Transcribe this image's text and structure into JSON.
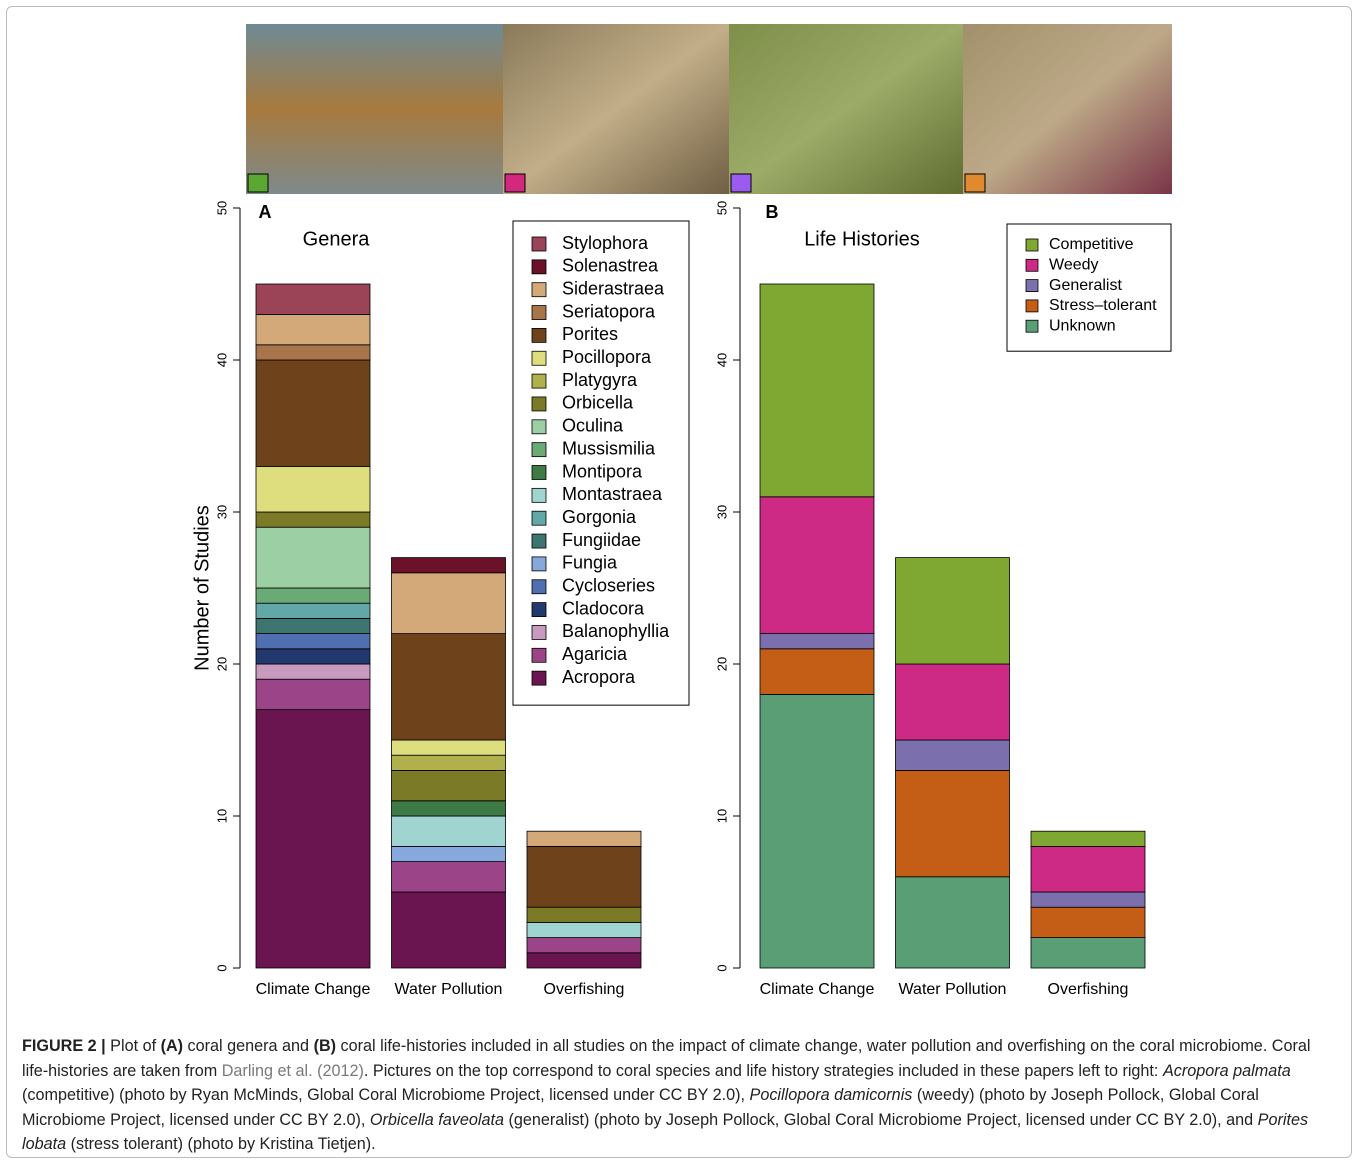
{
  "chart_data": [
    {
      "type": "bar",
      "stacked": true,
      "label": "A",
      "title": "Genera",
      "ylabel": "Number of Studies",
      "categories": [
        "Climate Change",
        "Water Pollution",
        "Overfishing"
      ],
      "ylim": [
        0,
        50
      ],
      "yticks": [
        0,
        10,
        20,
        30,
        40,
        50
      ],
      "legend": "upper right",
      "series": [
        {
          "name": "Acropora",
          "color": "#6a1550",
          "values": [
            17,
            5,
            1
          ]
        },
        {
          "name": "Agaricia",
          "color": "#9c4488",
          "values": [
            2,
            2,
            1
          ]
        },
        {
          "name": "Balanophyllia",
          "color": "#c99ac0",
          "values": [
            1,
            0,
            0
          ]
        },
        {
          "name": "Cladocora",
          "color": "#22386e",
          "values": [
            1,
            0,
            0
          ]
        },
        {
          "name": "Cycloseries",
          "color": "#4f6fb0",
          "values": [
            1,
            0,
            0
          ]
        },
        {
          "name": "Fungia",
          "color": "#86a8dd",
          "values": [
            0,
            1,
            0
          ]
        },
        {
          "name": "Fungiidae",
          "color": "#3d7570",
          "values": [
            1,
            0,
            0
          ]
        },
        {
          "name": "Gorgonia",
          "color": "#62a8a8",
          "values": [
            1,
            0,
            0
          ]
        },
        {
          "name": "Montastraea",
          "color": "#9fd4d0",
          "values": [
            0,
            2,
            1
          ]
        },
        {
          "name": "Montipora",
          "color": "#3d7a45",
          "values": [
            0,
            1,
            0
          ]
        },
        {
          "name": "Mussismilia",
          "color": "#6aab75",
          "values": [
            1,
            0,
            0
          ]
        },
        {
          "name": "Oculina",
          "color": "#9dcfa4",
          "values": [
            4,
            0,
            0
          ]
        },
        {
          "name": "Orbicella",
          "color": "#7a7a27",
          "values": [
            1,
            2,
            1
          ]
        },
        {
          "name": "Platygyra",
          "color": "#b0b04d",
          "values": [
            0,
            1,
            0
          ]
        },
        {
          "name": "Pocillopora",
          "color": "#dede7e",
          "values": [
            3,
            1,
            0
          ]
        },
        {
          "name": "Porites",
          "color": "#6e421b",
          "values": [
            7,
            7,
            4
          ]
        },
        {
          "name": "Seriatopora",
          "color": "#a8744a",
          "values": [
            1,
            0,
            0
          ]
        },
        {
          "name": "Siderastraea",
          "color": "#d4a97a",
          "values": [
            2,
            4,
            1
          ]
        },
        {
          "name": "Solenastrea",
          "color": "#6b1228",
          "values": [
            0,
            1,
            0
          ]
        },
        {
          "name": "Stylophora",
          "color": "#9b4457",
          "values": [
            2,
            0,
            0
          ]
        }
      ]
    },
    {
      "type": "bar",
      "stacked": true,
      "label": "B",
      "title": "Life Histories",
      "categories": [
        "Climate Change",
        "Water Pollution",
        "Overfishing"
      ],
      "ylim": [
        0,
        50
      ],
      "yticks": [
        0,
        10,
        20,
        30,
        40,
        50
      ],
      "legend": "upper right",
      "series": [
        {
          "name": "Unknown",
          "color": "#5a9e76",
          "values": [
            18,
            6,
            2
          ]
        },
        {
          "name": "Stress–tolerant",
          "color": "#c45e16",
          "values": [
            3,
            7,
            2
          ]
        },
        {
          "name": "Generalist",
          "color": "#7b6fae",
          "values": [
            1,
            2,
            1
          ]
        },
        {
          "name": "Weedy",
          "color": "#cc2a85",
          "values": [
            9,
            5,
            3
          ]
        },
        {
          "name": "Competitive",
          "color": "#7fa832",
          "values": [
            14,
            7,
            1
          ]
        }
      ]
    }
  ],
  "caption": [
    "FIGURE 2 |",
    " Plot of ",
    "(A)",
    " coral genera and ",
    "(B)",
    " coral life-histories included in all studies on the impact of climate change, water pollution and overfishing on the coral microbiome. Coral life-histories are taken from ",
    "Darling et al. (2012)",
    ". Pictures on the top correspond to coral species and life history strategies included in these papers left to right: ",
    "Acropora palmata",
    " (competitive) (photo by Ryan McMinds, Global Coral Microbiome Project, licensed under CC BY 2.0), ",
    "Pocillopora damicornis",
    " (weedy) (photo by Joseph Pollock, Global Coral Microbiome Project, licensed under CC BY 2.0), ",
    "Orbicella faveolata",
    " (generalist) (photo by Joseph Pollock, Global Coral Microbiome Project, licensed under CC BY 2.0), and ",
    "Porites lobata",
    " (stress tolerant) (photo by Kristina Tietjen)."
  ]
}
